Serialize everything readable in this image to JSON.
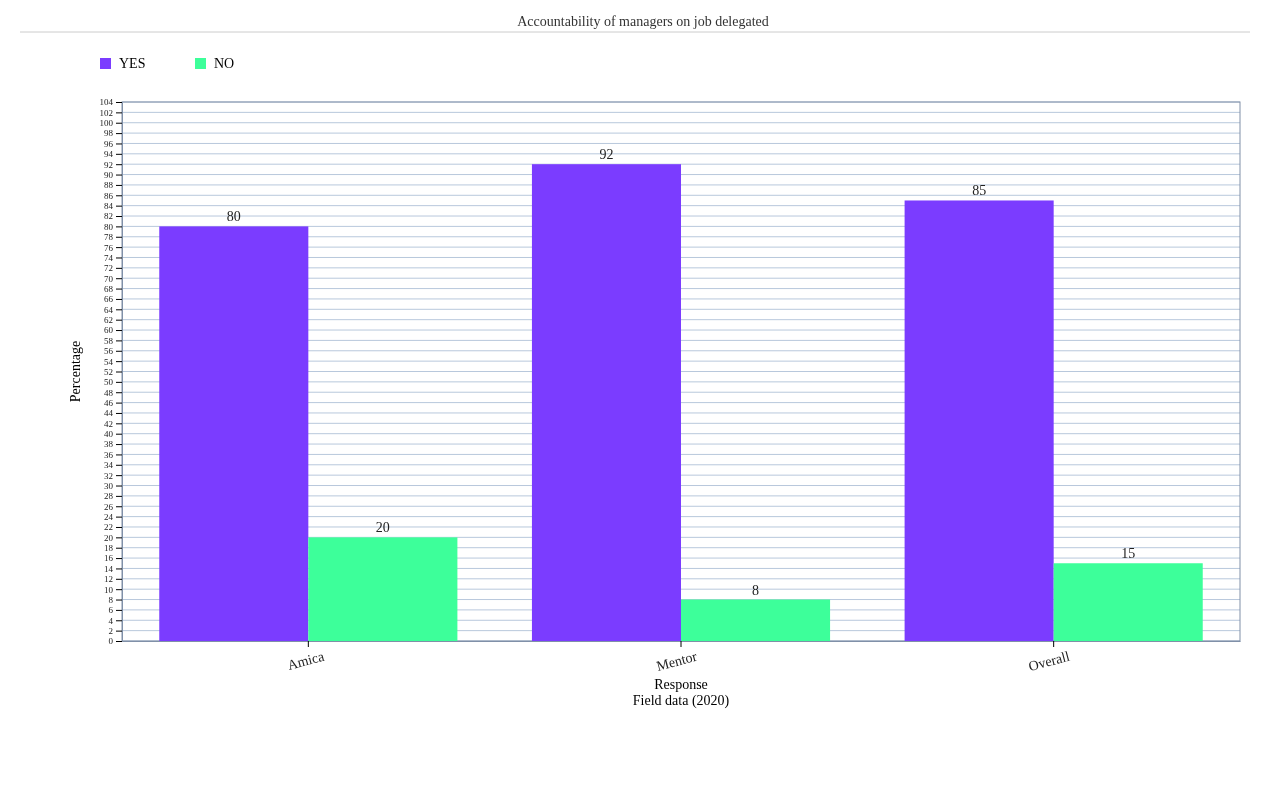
{
  "chart_data": {
    "type": "bar",
    "title": "Accountability of managers on job delegated",
    "xlabel": "Response",
    "ylabel": "Percentage",
    "annotations": [
      "Field data (2020)"
    ],
    "categories": [
      "Amica",
      "Mentor",
      "Overall"
    ],
    "series": [
      {
        "name": "YES",
        "color": "#7b3cff",
        "values": [
          80,
          92,
          85
        ]
      },
      {
        "name": "NO",
        "color": "#3dff9a",
        "values": [
          20,
          8,
          15
        ]
      }
    ],
    "ylim": [
      0,
      104
    ],
    "yticks": [
      0,
      2,
      4,
      6,
      8,
      10,
      12,
      14,
      16,
      18,
      20,
      22,
      24,
      26,
      28,
      30,
      32,
      34,
      36,
      38,
      40,
      42,
      44,
      46,
      48,
      50,
      52,
      54,
      56,
      58,
      60,
      62,
      64,
      66,
      68,
      70,
      72,
      74,
      76,
      78,
      80,
      82,
      84,
      86,
      88,
      90,
      92,
      94,
      96,
      98,
      100,
      102,
      104
    ],
    "grid": "y",
    "legend": "top left",
    "data_labels": true
  }
}
